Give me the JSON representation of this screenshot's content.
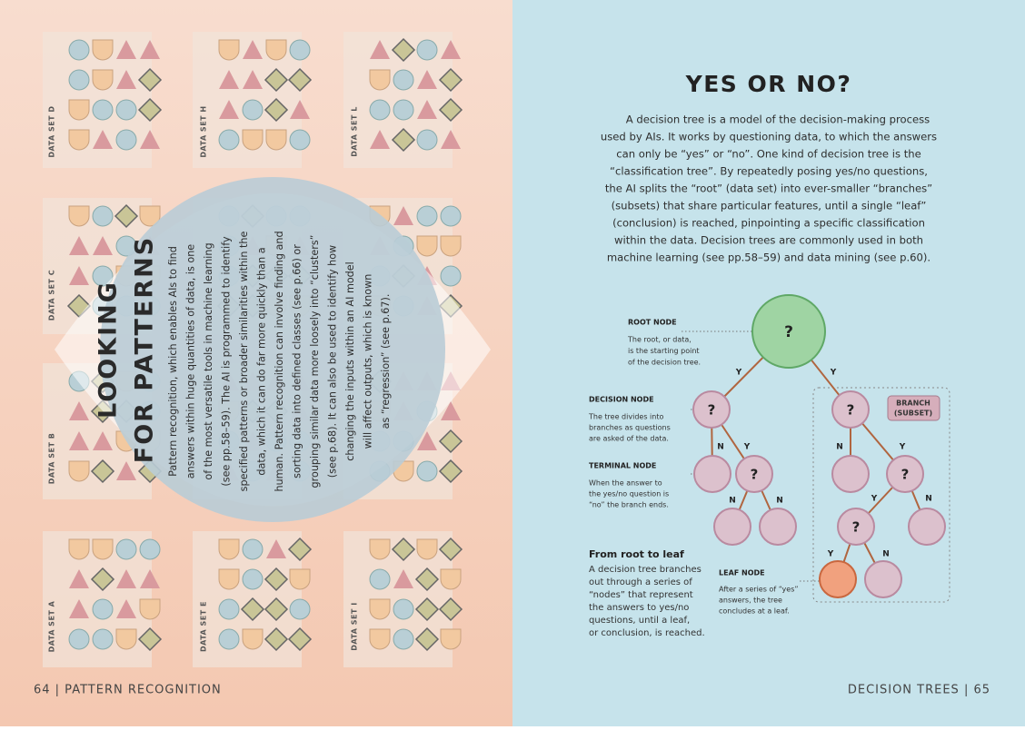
{
  "left_page": {
    "title": [
      "LOOKING",
      "FOR PATTERNS"
    ],
    "body": [
      "Pattern recognition, which enables AIs to find",
      "answers within huge quantities of data, is one",
      "of the most versatile tools in machine learning",
      "(see pp.58–59). The AI is programmed to identify",
      "specified patterns or broader similarities within the",
      "data, which it can do far more quickly than a",
      "human. Pattern recognition can involve finding and",
      "sorting data into defined classes (see p.66) or",
      "grouping similar data more loosely into “clusters”",
      "(see p.68). It can also be used to identify how",
      "changing the inputs within an AI model",
      "will affect outputs, which is known",
      "as “regression” (see p.67)."
    ],
    "data_sets": [
      "DATA SET D",
      "DATA SET H",
      "DATA SET L",
      "DATA SET C",
      "DATA SET B",
      "DATA SET A",
      "DATA SET E",
      "DATA SET I"
    ],
    "footer": "64 | PATTERN RECOGNITION"
  },
  "right_page": {
    "title": "YES OR NO?",
    "intro": [
      "A decision tree is a model of the decision-making process",
      "used by AIs. It works by questioning data, to which the answers",
      "can only be “yes” or “no”. One kind of decision tree is the",
      "“classification tree”. By repeatedly posing yes/no questions,",
      "the AI splits the “root” (data set) into ever-smaller “branches”",
      "(subsets) that share particular features, until a single “leaf”",
      "(conclusion) is reached, pinpointing a specific classification",
      "within the data. Decision trees are commonly used in both",
      "machine learning (see pp.58–59) and data mining (see p.60)."
    ],
    "labels": [
      {
        "heading": "ROOT NODE",
        "text": [
          "The root, or data,",
          "is the starting point",
          "of the decision tree."
        ]
      },
      {
        "heading": "DECISION NODE",
        "text": [
          "The tree divides into",
          "branches as questions",
          "are asked of the data."
        ]
      },
      {
        "heading": "TERMINAL NODE",
        "text": [
          "When the answer to",
          "the yes/no question is",
          "“no” the branch ends."
        ]
      },
      {
        "heading": "From root to leaf",
        "text": [
          "A decision tree branches",
          "out through a series of",
          "“nodes” that represent",
          "the answers to yes/no",
          "questions, until a leaf,",
          "or conclusion, is reached."
        ]
      },
      {
        "heading": "LEAF NODE",
        "text": [
          "After a series of “yes”",
          "answers, the tree",
          "concludes at a leaf."
        ]
      }
    ],
    "node_labels": [
      "?",
      "?",
      "?",
      "?",
      "?",
      "?"
    ],
    "edge_labels": [
      "Y",
      "Y",
      "N",
      "Y",
      "N",
      "Y",
      "N",
      "N",
      "Y",
      "N",
      "Y",
      "N"
    ],
    "branch_label": [
      "BRANCH",
      "(SUBSET)"
    ],
    "footer": "DECISION TREES | 65"
  }
}
